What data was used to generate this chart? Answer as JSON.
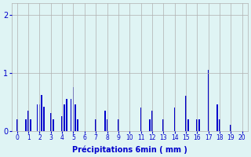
{
  "xlabel": "Précipitations 6min ( mm )",
  "xlim": [
    -0.5,
    20.5
  ],
  "ylim": [
    0,
    2.2
  ],
  "yticks": [
    0,
    1,
    2
  ],
  "background_color": "#dff4f4",
  "bar_color": "#0000cc",
  "grid_color": "#b0b0b0",
  "bar_width": 0.12,
  "bar_positions": [
    0.0,
    0.8,
    1.0,
    1.2,
    1.8,
    2.0,
    2.2,
    2.4,
    3.0,
    3.2,
    4.0,
    4.2,
    4.4,
    4.8,
    5.0,
    5.2,
    5.4,
    7.0,
    7.8,
    8.0,
    9.0,
    11.0,
    11.8,
    12.0,
    13.0,
    14.0,
    15.0,
    15.2,
    16.0,
    16.2,
    17.0,
    17.8,
    18.0,
    19.0
  ],
  "bar_heights": [
    0.2,
    0.2,
    0.35,
    0.2,
    0.45,
    0.45,
    0.62,
    0.42,
    0.3,
    0.2,
    0.25,
    0.45,
    0.55,
    0.55,
    0.75,
    0.45,
    0.2,
    0.2,
    0.35,
    0.2,
    0.2,
    0.4,
    0.2,
    0.35,
    0.2,
    0.4,
    0.6,
    0.2,
    0.2,
    0.2,
    1.05,
    0.45,
    0.2,
    0.1
  ]
}
